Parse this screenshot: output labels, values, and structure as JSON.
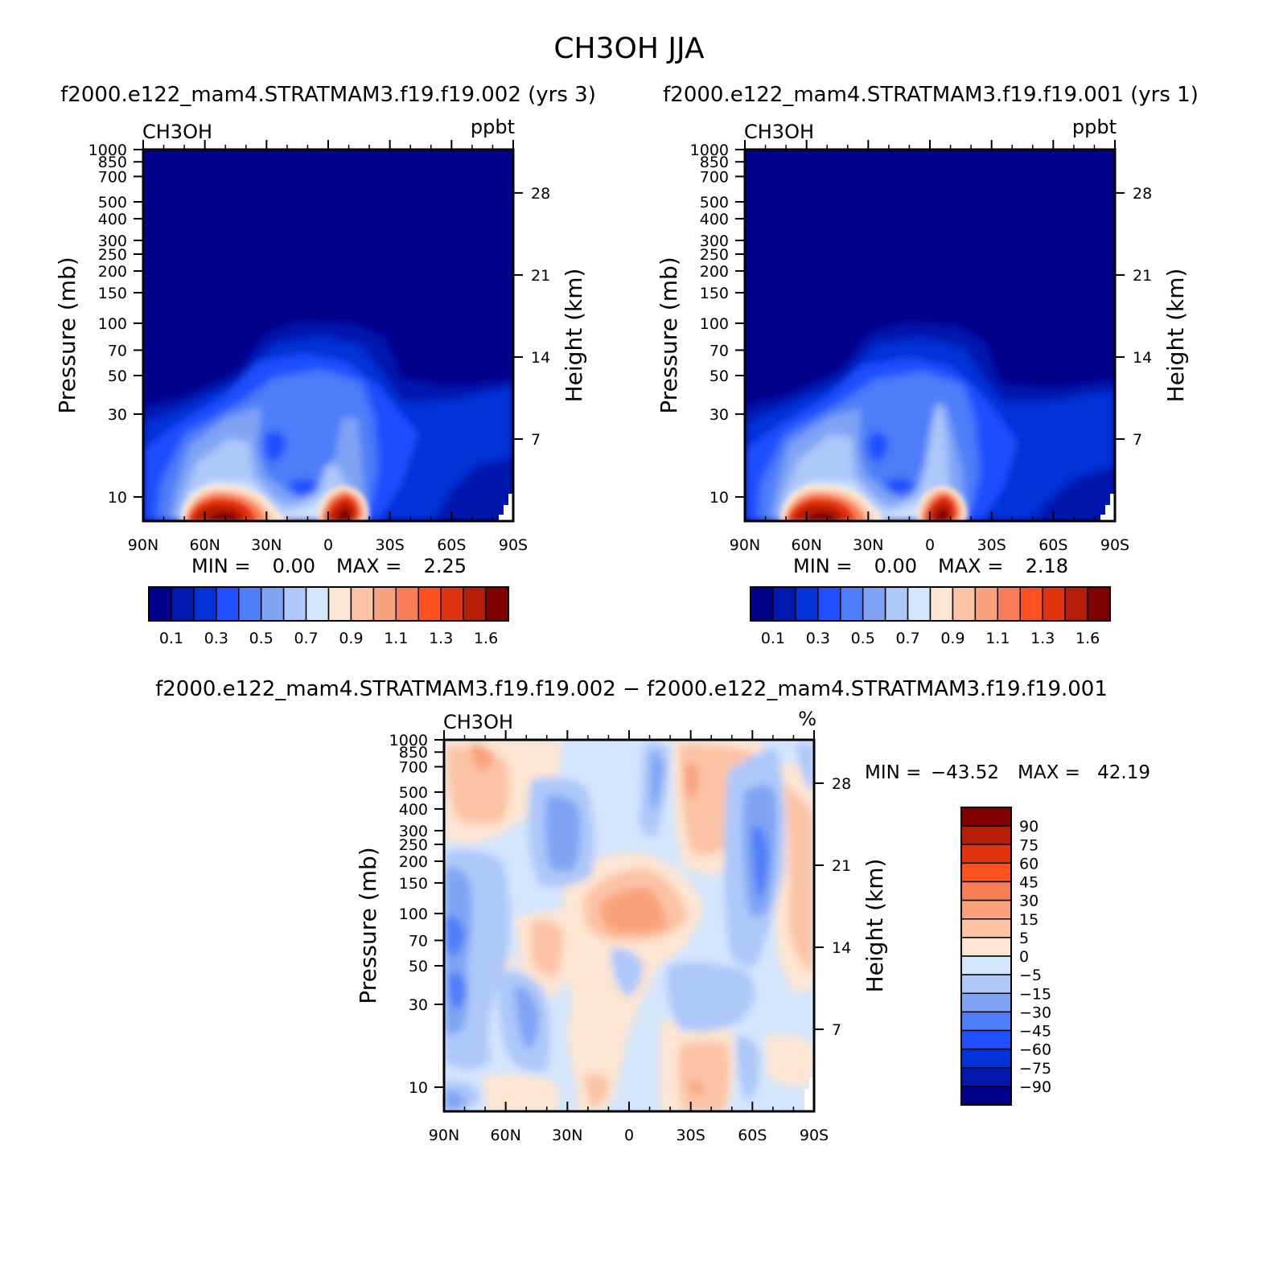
{
  "figure": {
    "title": "CH3OH JJA",
    "left_header": "f2000.e122_mam4.STRATMAM3.f19.f19.002 (yrs 3)",
    "right_header": "f2000.e122_mam4.STRATMAM3.f19.f19.001 (yrs 1)",
    "diff_header": "f2000.e122_mam4.STRATMAM3.f19.f19.002 − f2000.e122_mam4.STRATMAM3.f19.f19.001"
  },
  "chart_data": [
    {
      "type": "heatmap",
      "id": "case1",
      "var_label": "CH3OH",
      "units": "ppbt",
      "ylabel": "Pressure (mb)",
      "ylabel_right": "Height (km)",
      "x_ticks": [
        "90N",
        "60N",
        "30N",
        "0",
        "30S",
        "60S",
        "90S"
      ],
      "y_ticks": [
        "10",
        "30",
        "50",
        "70",
        "100",
        "150",
        "200",
        "250",
        "300",
        "400",
        "500",
        "700",
        "850",
        "1000"
      ],
      "y_ticks_right": [
        "28",
        "21",
        "14",
        "7"
      ],
      "y_scale": "log",
      "ylim": [
        1000,
        10
      ],
      "stats_min_label": "MIN =",
      "stats_min": "0.00",
      "stats_max_label": "MAX =",
      "stats_max": "2.25",
      "max": 2.25,
      "colorbar_labels": [
        "0.1",
        "0.3",
        "0.5",
        "0.7",
        "0.9",
        "1.1",
        "1.3",
        "1.6"
      ],
      "colors": [
        "#00008b",
        "#0018ad",
        "#0032d8",
        "#1f4fff",
        "#4d7df8",
        "#7fa4f4",
        "#aec8fa",
        "#d4e6fd",
        "#fde5d2",
        "#fcc3a4",
        "#f9a27b",
        "#f77e54",
        "#ff5020",
        "#e1330d",
        "#b51d06",
        "#7f0000"
      ],
      "grid": false
    },
    {
      "type": "heatmap",
      "id": "case2",
      "var_label": "CH3OH",
      "units": "ppbt",
      "ylabel": "Pressure (mb)",
      "ylabel_right": "Height (km)",
      "x_ticks": [
        "90N",
        "60N",
        "30N",
        "0",
        "30S",
        "60S",
        "90S"
      ],
      "y_ticks": [
        "10",
        "30",
        "50",
        "70",
        "100",
        "150",
        "200",
        "250",
        "300",
        "400",
        "500",
        "700",
        "850",
        "1000"
      ],
      "y_ticks_right": [
        "28",
        "21",
        "14",
        "7"
      ],
      "y_scale": "log",
      "ylim": [
        1000,
        10
      ],
      "stats_min_label": "MIN =",
      "stats_min": "0.00",
      "stats_max_label": "MAX =",
      "stats_max": "2.18",
      "max": 2.18,
      "colorbar_labels": [
        "0.1",
        "0.3",
        "0.5",
        "0.7",
        "0.9",
        "1.1",
        "1.3",
        "1.6"
      ],
      "colors": [
        "#00008b",
        "#0018ad",
        "#0032d8",
        "#1f4fff",
        "#4d7df8",
        "#7fa4f4",
        "#aec8fa",
        "#d4e6fd",
        "#fde5d2",
        "#fcc3a4",
        "#f9a27b",
        "#f77e54",
        "#ff5020",
        "#e1330d",
        "#b51d06",
        "#7f0000"
      ],
      "grid": false
    },
    {
      "type": "heatmap",
      "id": "diff",
      "var_label": "CH3OH",
      "units": "%",
      "ylabel": "Pressure (mb)",
      "ylabel_right": "Height (km)",
      "x_ticks": [
        "90N",
        "60N",
        "30N",
        "0",
        "30S",
        "60S",
        "90S"
      ],
      "y_ticks": [
        "10",
        "30",
        "50",
        "70",
        "100",
        "150",
        "200",
        "250",
        "300",
        "400",
        "500",
        "700",
        "850",
        "1000"
      ],
      "y_ticks_right": [
        "28",
        "21",
        "14",
        "7"
      ],
      "y_scale": "log",
      "ylim": [
        1000,
        10
      ],
      "stats_min_label": "MIN =",
      "stats_min": "−43.52",
      "stats_max_label": "MAX =",
      "stats_max": "42.19",
      "min": -43.52,
      "max": 42.19,
      "colorbar_labels": [
        "90",
        "75",
        "60",
        "45",
        "30",
        "15",
        "5",
        "0",
        "−5",
        "−15",
        "−30",
        "−45",
        "−60",
        "−75",
        "−90"
      ],
      "colors": [
        "#7f0000",
        "#b51d06",
        "#e1330d",
        "#ff5020",
        "#f77e54",
        "#f9a27b",
        "#fcc3a4",
        "#fde5d2",
        "#d4e6fd",
        "#aec8fa",
        "#7fa4f4",
        "#4d7df8",
        "#1f4fff",
        "#0032d8",
        "#0018ad",
        "#00008b"
      ],
      "grid": false
    }
  ]
}
